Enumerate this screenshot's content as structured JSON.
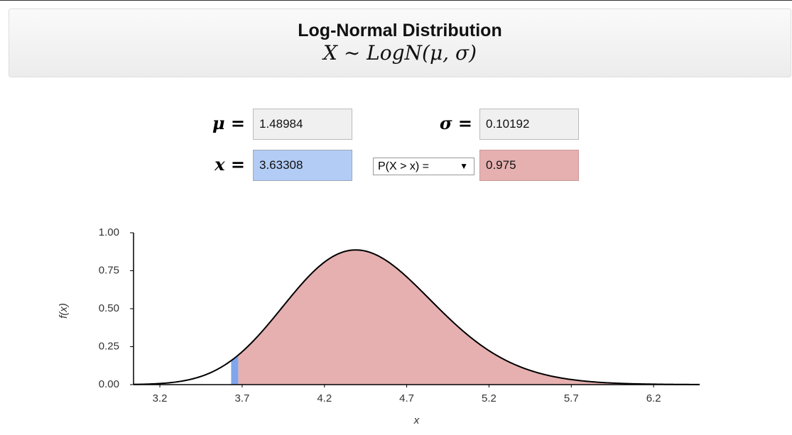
{
  "header": {
    "title": "Log-Normal Distribution",
    "formula": "X ∼ LogN(μ, σ)"
  },
  "inputs": {
    "mu": {
      "label": "μ =",
      "value": 1.48984
    },
    "sigma": {
      "label": "σ =",
      "value": 0.10192
    },
    "x": {
      "label": "x =",
      "value": 3.63308
    },
    "probability": {
      "label": "P(X > x) =",
      "value": 0.975
    }
  },
  "chart": {
    "type": "area",
    "xlabel": "x",
    "ylabel": "f(x)",
    "xlim": [
      3.04,
      6.48
    ],
    "ylim": [
      0,
      1
    ],
    "xticks": [
      3.2,
      3.7,
      4.2,
      4.7,
      5.2,
      5.7,
      6.2
    ],
    "yticks": [
      {
        "value": 0,
        "label": "0.00"
      },
      0.25,
      {
        "value": 0.5,
        "label": "0.50"
      },
      0.75,
      {
        "value": 1,
        "label": "1.00"
      }
    ],
    "fill_color": "#e6b0b0",
    "marker_color": "#7fa6ec",
    "line_color": "#000000"
  }
}
